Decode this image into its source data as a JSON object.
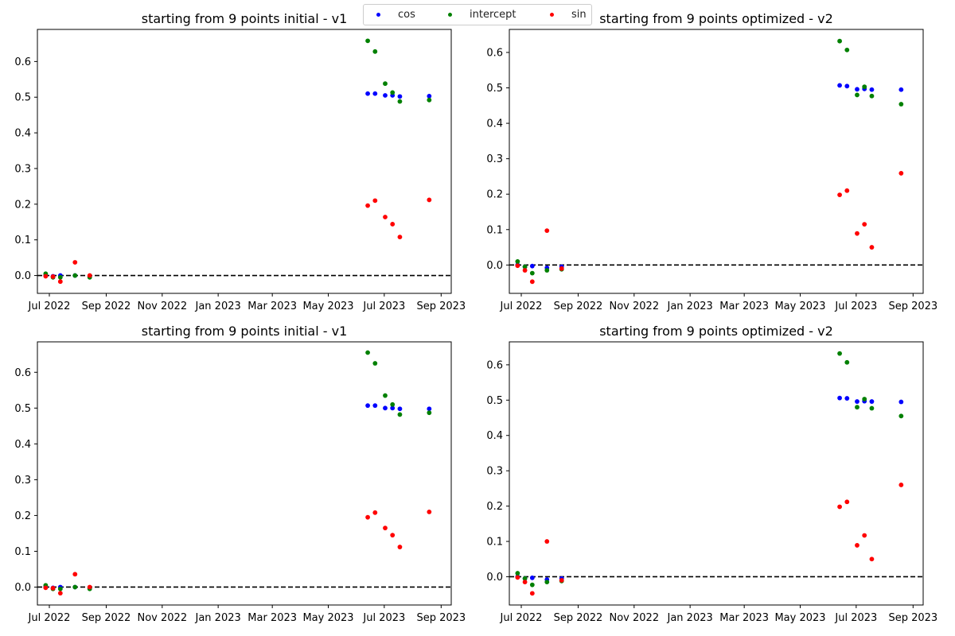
{
  "legend": {
    "placement": "top-center",
    "items": [
      {
        "label": "cos",
        "color": "#0000ff"
      },
      {
        "label": "intercept",
        "color": "#008000"
      },
      {
        "label": "sin",
        "color": "#ff0000"
      }
    ]
  },
  "chart_data": [
    {
      "type": "scatter",
      "title": "starting from 9 points initial - v1",
      "xlabel": "",
      "ylabel": "",
      "xlim": [
        "2022-06-18",
        "2023-09-12"
      ],
      "ylim": [
        -0.05,
        0.69
      ],
      "xticks": [
        "2022-07-01",
        "2022-09-01",
        "2022-11-01",
        "2023-01-01",
        "2023-03-01",
        "2023-05-01",
        "2023-07-01",
        "2023-09-01"
      ],
      "xtick_labels": [
        "Jul 2022",
        "Sep 2022",
        "Nov 2022",
        "Jan 2023",
        "Mar 2023",
        "May 2023",
        "Jul 2023",
        "Sep 2023"
      ],
      "yticks": [
        0.0,
        0.1,
        0.2,
        0.3,
        0.4,
        0.5,
        0.6
      ],
      "ytick_labels": [
        "0.0",
        "0.1",
        "0.2",
        "0.3",
        "0.4",
        "0.5",
        "0.6"
      ],
      "hline": {
        "y": 0,
        "style": "dashed",
        "color": "#000000"
      },
      "series": [
        {
          "name": "cos",
          "color": "#0000ff",
          "points": [
            [
              "2022-06-27",
              0.0
            ],
            [
              "2022-07-05",
              -0.002
            ],
            [
              "2022-07-13",
              0.0
            ],
            [
              "2022-07-29",
              0.0
            ],
            [
              "2022-08-14",
              -0.002
            ],
            [
              "2023-06-13",
              0.51
            ],
            [
              "2023-06-21",
              0.51
            ],
            [
              "2023-07-02",
              0.505
            ],
            [
              "2023-07-10",
              0.505
            ],
            [
              "2023-07-18",
              0.502
            ],
            [
              "2023-08-19",
              0.503
            ]
          ]
        },
        {
          "name": "intercept",
          "color": "#008000",
          "points": [
            [
              "2022-06-27",
              0.005
            ],
            [
              "2022-07-05",
              -0.005
            ],
            [
              "2022-07-13",
              -0.005
            ],
            [
              "2022-07-29",
              0.0
            ],
            [
              "2022-08-14",
              -0.005
            ],
            [
              "2023-06-13",
              0.658
            ],
            [
              "2023-06-21",
              0.628
            ],
            [
              "2023-07-02",
              0.538
            ],
            [
              "2023-07-10",
              0.513
            ],
            [
              "2023-07-18",
              0.488
            ],
            [
              "2023-08-19",
              0.492
            ]
          ]
        },
        {
          "name": "sin",
          "color": "#ff0000",
          "points": [
            [
              "2022-06-27",
              -0.002
            ],
            [
              "2022-07-05",
              -0.003
            ],
            [
              "2022-07-13",
              -0.017
            ],
            [
              "2022-07-29",
              0.037
            ],
            [
              "2022-08-14",
              0.0
            ],
            [
              "2023-06-13",
              0.196
            ],
            [
              "2023-06-21",
              0.21
            ],
            [
              "2023-07-02",
              0.164
            ],
            [
              "2023-07-10",
              0.144
            ],
            [
              "2023-07-18",
              0.108
            ],
            [
              "2023-08-19",
              0.212
            ]
          ]
        }
      ]
    },
    {
      "type": "scatter",
      "title": "starting from 9 points optimized - v2",
      "xlabel": "",
      "ylabel": "",
      "xlim": [
        "2022-06-18",
        "2023-09-12"
      ],
      "ylim": [
        -0.08,
        0.665
      ],
      "xticks": [
        "2022-07-01",
        "2022-09-01",
        "2022-11-01",
        "2023-01-01",
        "2023-03-01",
        "2023-05-01",
        "2023-07-01",
        "2023-09-01"
      ],
      "xtick_labels": [
        "Jul 2022",
        "Sep 2022",
        "Nov 2022",
        "Jan 2023",
        "Mar 2023",
        "May 2023",
        "Jul 2023",
        "Sep 2023"
      ],
      "yticks": [
        0.0,
        0.1,
        0.2,
        0.3,
        0.4,
        0.5,
        0.6
      ],
      "ytick_labels": [
        "0.0",
        "0.1",
        "0.2",
        "0.3",
        "0.4",
        "0.5",
        "0.6"
      ],
      "hline": {
        "y": 0,
        "style": "dashed",
        "color": "#000000"
      },
      "series": [
        {
          "name": "cos",
          "color": "#0000ff",
          "points": [
            [
              "2022-06-27",
              0.0
            ],
            [
              "2022-07-05",
              -0.005
            ],
            [
              "2022-07-13",
              -0.003
            ],
            [
              "2022-07-29",
              -0.008
            ],
            [
              "2022-08-14",
              -0.005
            ],
            [
              "2023-06-13",
              0.507
            ],
            [
              "2023-06-21",
              0.505
            ],
            [
              "2023-07-02",
              0.496
            ],
            [
              "2023-07-10",
              0.497
            ],
            [
              "2023-07-18",
              0.495
            ],
            [
              "2023-08-19",
              0.495
            ]
          ]
        },
        {
          "name": "intercept",
          "color": "#008000",
          "points": [
            [
              "2022-06-27",
              0.01
            ],
            [
              "2022-07-05",
              -0.005
            ],
            [
              "2022-07-13",
              -0.023
            ],
            [
              "2022-07-29",
              -0.015
            ],
            [
              "2022-08-14",
              -0.012
            ],
            [
              "2023-06-13",
              0.632
            ],
            [
              "2023-06-21",
              0.607
            ],
            [
              "2023-07-02",
              0.48
            ],
            [
              "2023-07-10",
              0.503
            ],
            [
              "2023-07-18",
              0.477
            ],
            [
              "2023-08-19",
              0.454
            ]
          ]
        },
        {
          "name": "sin",
          "color": "#ff0000",
          "points": [
            [
              "2022-06-27",
              -0.002
            ],
            [
              "2022-07-05",
              -0.015
            ],
            [
              "2022-07-13",
              -0.047
            ],
            [
              "2022-07-29",
              0.097
            ],
            [
              "2022-08-14",
              -0.01
            ],
            [
              "2023-06-13",
              0.198
            ],
            [
              "2023-06-21",
              0.21
            ],
            [
              "2023-07-02",
              0.089
            ],
            [
              "2023-07-10",
              0.115
            ],
            [
              "2023-07-18",
              0.05
            ],
            [
              "2023-08-19",
              0.259
            ]
          ]
        }
      ]
    },
    {
      "type": "scatter",
      "title": "starting from 9 points initial - v1",
      "xlabel": "",
      "ylabel": "",
      "xlim": [
        "2022-06-18",
        "2023-09-12"
      ],
      "ylim": [
        -0.05,
        0.685
      ],
      "xticks": [
        "2022-07-01",
        "2022-09-01",
        "2022-11-01",
        "2023-01-01",
        "2023-03-01",
        "2023-05-01",
        "2023-07-01",
        "2023-09-01"
      ],
      "xtick_labels": [
        "Jul 2022",
        "Sep 2022",
        "Nov 2022",
        "Jan 2023",
        "Mar 2023",
        "May 2023",
        "Jul 2023",
        "Sep 2023"
      ],
      "yticks": [
        0.0,
        0.1,
        0.2,
        0.3,
        0.4,
        0.5,
        0.6
      ],
      "ytick_labels": [
        "0.0",
        "0.1",
        "0.2",
        "0.3",
        "0.4",
        "0.5",
        "0.6"
      ],
      "hline": {
        "y": 0,
        "style": "dashed",
        "color": "#000000"
      },
      "series": [
        {
          "name": "cos",
          "color": "#0000ff",
          "points": [
            [
              "2022-06-27",
              0.0
            ],
            [
              "2022-07-05",
              -0.002
            ],
            [
              "2022-07-13",
              0.0
            ],
            [
              "2022-07-29",
              0.0
            ],
            [
              "2022-08-14",
              -0.002
            ],
            [
              "2023-06-13",
              0.507
            ],
            [
              "2023-06-21",
              0.507
            ],
            [
              "2023-07-02",
              0.5
            ],
            [
              "2023-07-10",
              0.5
            ],
            [
              "2023-07-18",
              0.498
            ],
            [
              "2023-08-19",
              0.498
            ]
          ]
        },
        {
          "name": "intercept",
          "color": "#008000",
          "points": [
            [
              "2022-06-27",
              0.005
            ],
            [
              "2022-07-05",
              -0.005
            ],
            [
              "2022-07-13",
              -0.005
            ],
            [
              "2022-07-29",
              0.0
            ],
            [
              "2022-08-14",
              -0.005
            ],
            [
              "2023-06-13",
              0.655
            ],
            [
              "2023-06-21",
              0.625
            ],
            [
              "2023-07-02",
              0.535
            ],
            [
              "2023-07-10",
              0.51
            ],
            [
              "2023-07-18",
              0.482
            ],
            [
              "2023-08-19",
              0.487
            ]
          ]
        },
        {
          "name": "sin",
          "color": "#ff0000",
          "points": [
            [
              "2022-06-27",
              -0.002
            ],
            [
              "2022-07-05",
              -0.003
            ],
            [
              "2022-07-13",
              -0.017
            ],
            [
              "2022-07-29",
              0.036
            ],
            [
              "2022-08-14",
              0.0
            ],
            [
              "2023-06-13",
              0.195
            ],
            [
              "2023-06-21",
              0.208
            ],
            [
              "2023-07-02",
              0.165
            ],
            [
              "2023-07-10",
              0.145
            ],
            [
              "2023-07-18",
              0.112
            ],
            [
              "2023-08-19",
              0.21
            ]
          ]
        }
      ]
    },
    {
      "type": "scatter",
      "title": "starting from 9 points optimized - v2",
      "xlabel": "",
      "ylabel": "",
      "xlim": [
        "2022-06-18",
        "2023-09-12"
      ],
      "ylim": [
        -0.08,
        0.665
      ],
      "xticks": [
        "2022-07-01",
        "2022-09-01",
        "2022-11-01",
        "2023-01-01",
        "2023-03-01",
        "2023-05-01",
        "2023-07-01",
        "2023-09-01"
      ],
      "xtick_labels": [
        "Jul 2022",
        "Sep 2022",
        "Nov 2022",
        "Jan 2023",
        "Mar 2023",
        "May 2023",
        "Jul 2023",
        "Sep 2023"
      ],
      "yticks": [
        0.0,
        0.1,
        0.2,
        0.3,
        0.4,
        0.5,
        0.6
      ],
      "ytick_labels": [
        "0.0",
        "0.1",
        "0.2",
        "0.3",
        "0.4",
        "0.5",
        "0.6"
      ],
      "hline": {
        "y": 0,
        "style": "dashed",
        "color": "#000000"
      },
      "series": [
        {
          "name": "cos",
          "color": "#0000ff",
          "points": [
            [
              "2022-06-27",
              0.0
            ],
            [
              "2022-07-05",
              -0.005
            ],
            [
              "2022-07-13",
              -0.003
            ],
            [
              "2022-07-29",
              -0.008
            ],
            [
              "2022-08-14",
              -0.005
            ],
            [
              "2023-06-13",
              0.506
            ],
            [
              "2023-06-21",
              0.505
            ],
            [
              "2023-07-02",
              0.496
            ],
            [
              "2023-07-10",
              0.497
            ],
            [
              "2023-07-18",
              0.496
            ],
            [
              "2023-08-19",
              0.495
            ]
          ]
        },
        {
          "name": "intercept",
          "color": "#008000",
          "points": [
            [
              "2022-06-27",
              0.01
            ],
            [
              "2022-07-05",
              -0.005
            ],
            [
              "2022-07-13",
              -0.023
            ],
            [
              "2022-07-29",
              -0.015
            ],
            [
              "2022-08-14",
              -0.012
            ],
            [
              "2023-06-13",
              0.632
            ],
            [
              "2023-06-21",
              0.607
            ],
            [
              "2023-07-02",
              0.48
            ],
            [
              "2023-07-10",
              0.503
            ],
            [
              "2023-07-18",
              0.477
            ],
            [
              "2023-08-19",
              0.455
            ]
          ]
        },
        {
          "name": "sin",
          "color": "#ff0000",
          "points": [
            [
              "2022-06-27",
              -0.002
            ],
            [
              "2022-07-05",
              -0.015
            ],
            [
              "2022-07-13",
              -0.047
            ],
            [
              "2022-07-29",
              0.1
            ],
            [
              "2022-08-14",
              -0.01
            ],
            [
              "2023-06-13",
              0.198
            ],
            [
              "2023-06-21",
              0.212
            ],
            [
              "2023-07-02",
              0.089
            ],
            [
              "2023-07-10",
              0.117
            ],
            [
              "2023-07-18",
              0.05
            ],
            [
              "2023-08-19",
              0.26
            ]
          ]
        }
      ]
    }
  ]
}
